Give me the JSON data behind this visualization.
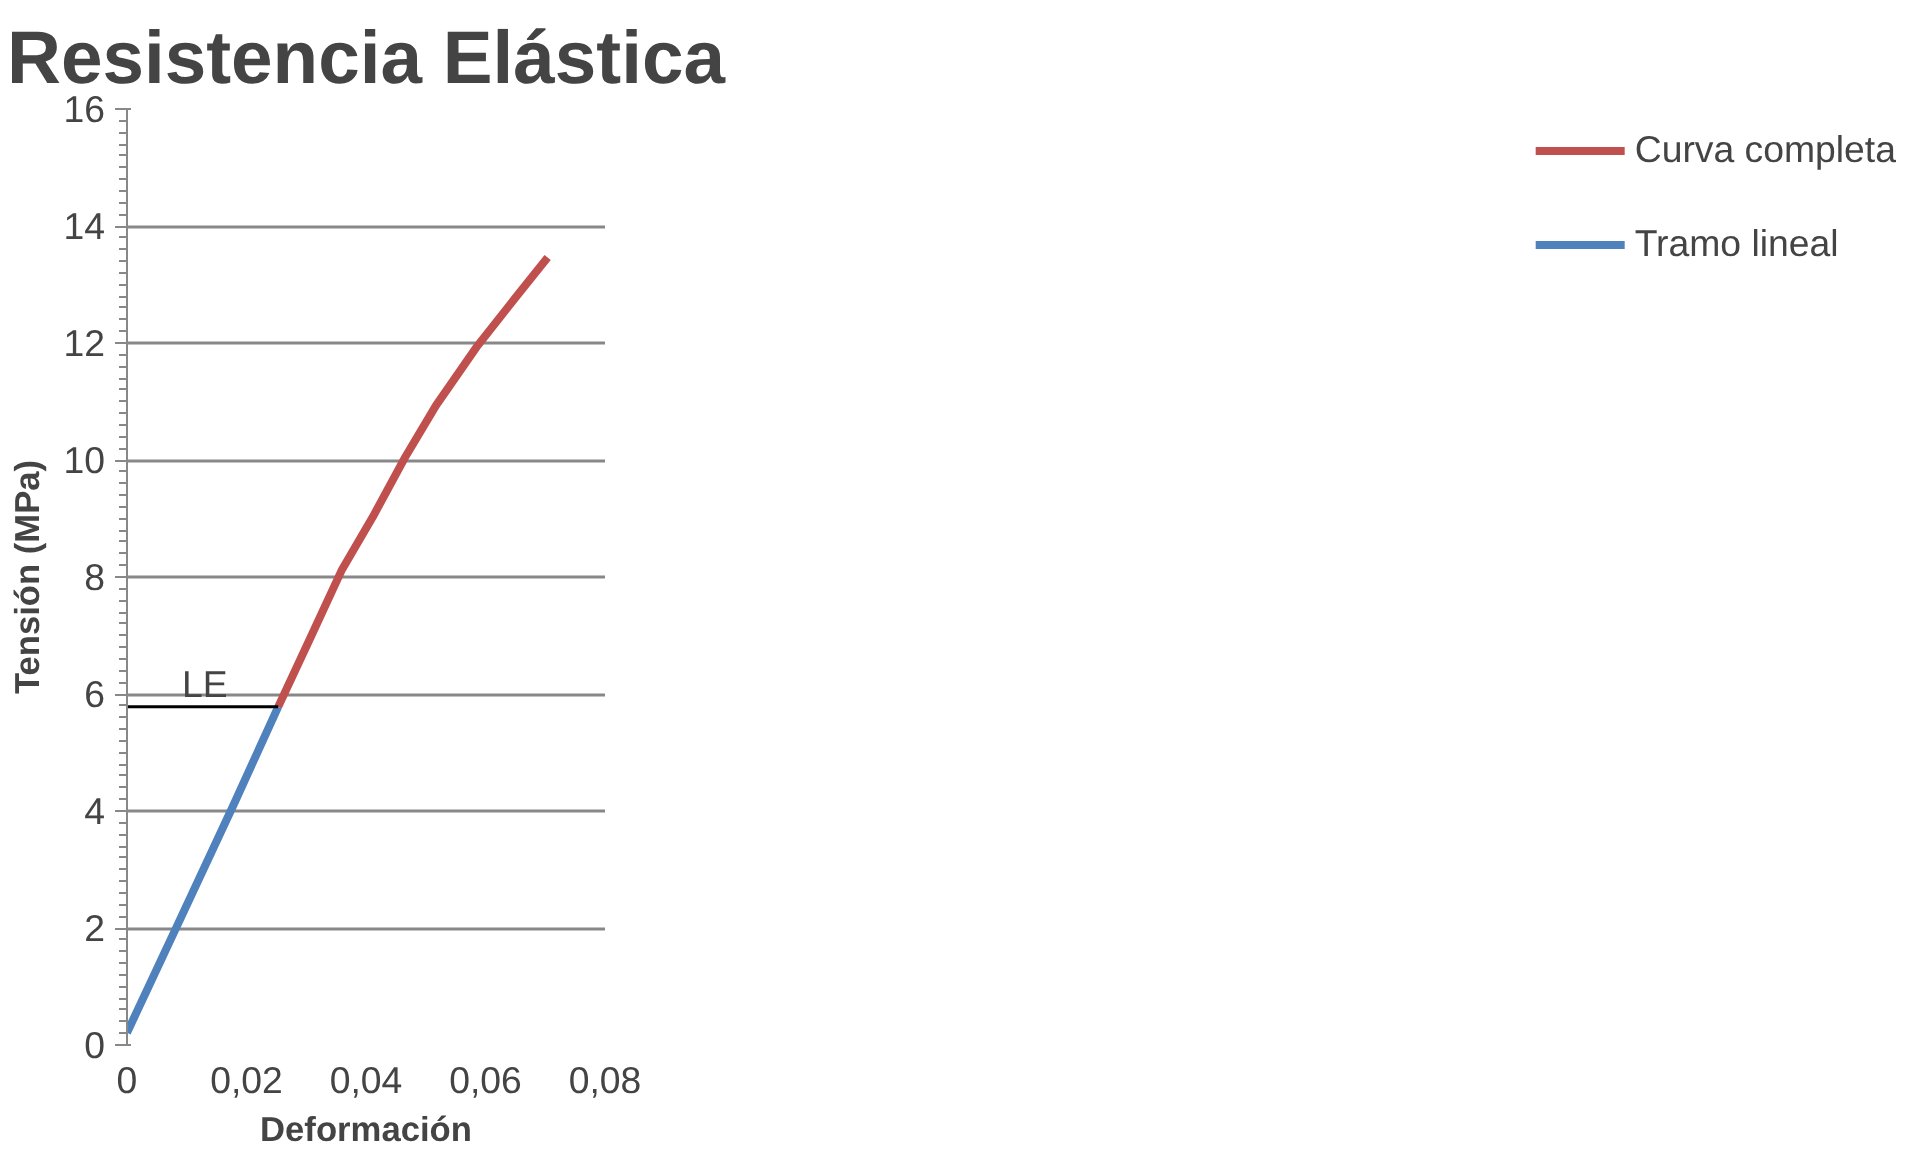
{
  "chart_data": {
    "type": "line",
    "title": "Resistencia Elástica",
    "xlabel": "Deformación",
    "ylabel": "Tensión (MPa)",
    "xlim": [
      0,
      0.08
    ],
    "ylim": [
      0,
      16
    ],
    "xticks": [
      0,
      {
        "value": 0.02,
        "label": "0,02"
      },
      {
        "value": 0.04,
        "label": "0,04"
      },
      {
        "value": 0.06,
        "label": "0,06"
      },
      {
        "value": 0.08,
        "label": "0,08"
      }
    ],
    "yticks": [
      0,
      2,
      4,
      6,
      8,
      10,
      12,
      14,
      16
    ],
    "grid": "y",
    "legend": "right",
    "line_style": "solid",
    "marker": "none",
    "series": [
      {
        "name": "Curva completa",
        "color": "#c0504d",
        "x": [
          0.0253,
          0.0306,
          0.0359,
          0.0411,
          0.0464,
          0.0517,
          0.0585,
          0.0649,
          0.0704
        ],
        "values": [
          5.78,
          6.94,
          8.11,
          9.02,
          10.02,
          10.93,
          11.93,
          12.76,
          13.46
        ]
      },
      {
        "name": "Tramo lineal",
        "color": "#4f81bd",
        "x": [
          0,
          0.0084,
          0.0179,
          0.0253
        ],
        "values": [
          0.21,
          2.04,
          4.12,
          5.78
        ]
      },
      {
        "color": "#000000",
        "x": [
          0,
          0.0253
        ],
        "values": [
          5.78,
          5.78
        ]
      }
    ],
    "annotations": [
      {
        "text": "LE",
        "x": 0.0092,
        "y": 5.78
      }
    ]
  }
}
